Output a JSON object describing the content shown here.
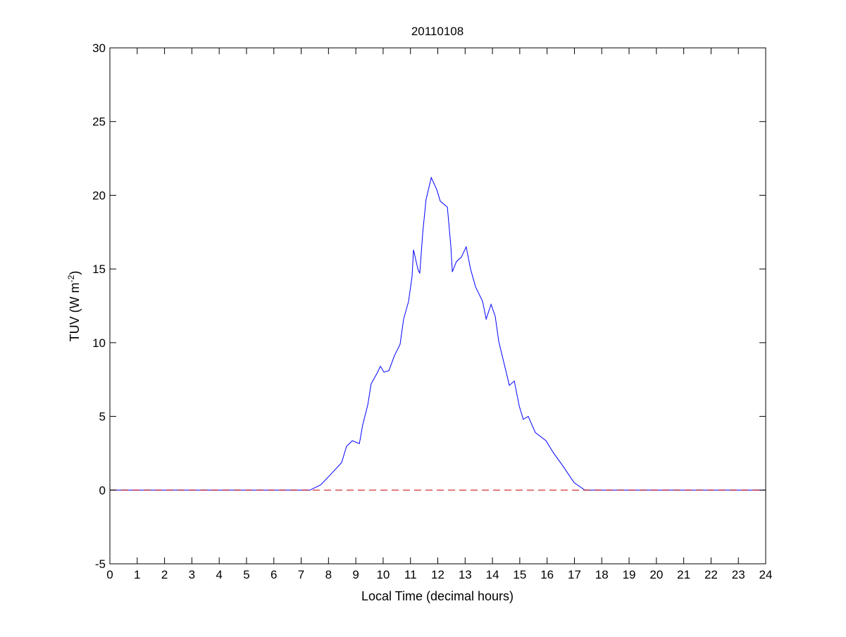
{
  "chart_data": {
    "type": "line",
    "title": "20110108",
    "xlabel": "Local Time (decimal hours)",
    "ylabel_main": "TUV (W m",
    "ylabel_sup": "-2",
    "ylabel_close": ")",
    "xlim": [
      0,
      24
    ],
    "ylim": [
      -5,
      30
    ],
    "xticks": [
      0,
      1,
      2,
      3,
      4,
      5,
      6,
      7,
      8,
      9,
      10,
      11,
      12,
      13,
      14,
      15,
      16,
      17,
      18,
      19,
      20,
      21,
      22,
      23,
      24
    ],
    "yticks": [
      -5,
      0,
      5,
      10,
      15,
      20,
      25,
      30
    ],
    "grid": false,
    "series": [
      {
        "color": "#0000ff",
        "style": "solid",
        "x": [
          0,
          7.32,
          7.71,
          8.09,
          8.48,
          8.66,
          8.87,
          9.13,
          9.25,
          9.44,
          9.56,
          9.77,
          9.9,
          10.03,
          10.21,
          10.41,
          10.62,
          10.75,
          10.93,
          11.06,
          11.11,
          11.27,
          11.34,
          11.45,
          11.57,
          11.76,
          11.96,
          12.09,
          12.35,
          12.48,
          12.53,
          12.68,
          12.86,
          13.04,
          13.2,
          13.38,
          13.64,
          13.77,
          13.95,
          14.1,
          14.23,
          14.36,
          14.49,
          14.62,
          14.8,
          14.98,
          15.13,
          15.31,
          15.57,
          15.96,
          16.22,
          16.6,
          16.99,
          17.38,
          24
        ],
        "y": [
          0,
          0,
          0.35,
          1.08,
          1.87,
          2.96,
          3.35,
          3.15,
          4.4,
          5.8,
          7.2,
          7.9,
          8.4,
          8.0,
          8.1,
          9.1,
          9.9,
          11.6,
          12.8,
          14.5,
          16.3,
          15.0,
          14.7,
          17.5,
          19.7,
          21.2,
          20.4,
          19.6,
          19.2,
          16.5,
          14.8,
          15.5,
          15.8,
          16.5,
          15.0,
          13.8,
          12.8,
          11.6,
          12.6,
          11.8,
          10.1,
          9.1,
          8.1,
          7.1,
          7.4,
          5.7,
          4.8,
          5.0,
          3.9,
          3.35,
          2.56,
          1.58,
          0.5,
          0,
          0
        ]
      },
      {
        "color": "#cc0000",
        "style": "dashed",
        "x": [
          0,
          24
        ],
        "y": [
          0,
          0
        ]
      }
    ]
  }
}
